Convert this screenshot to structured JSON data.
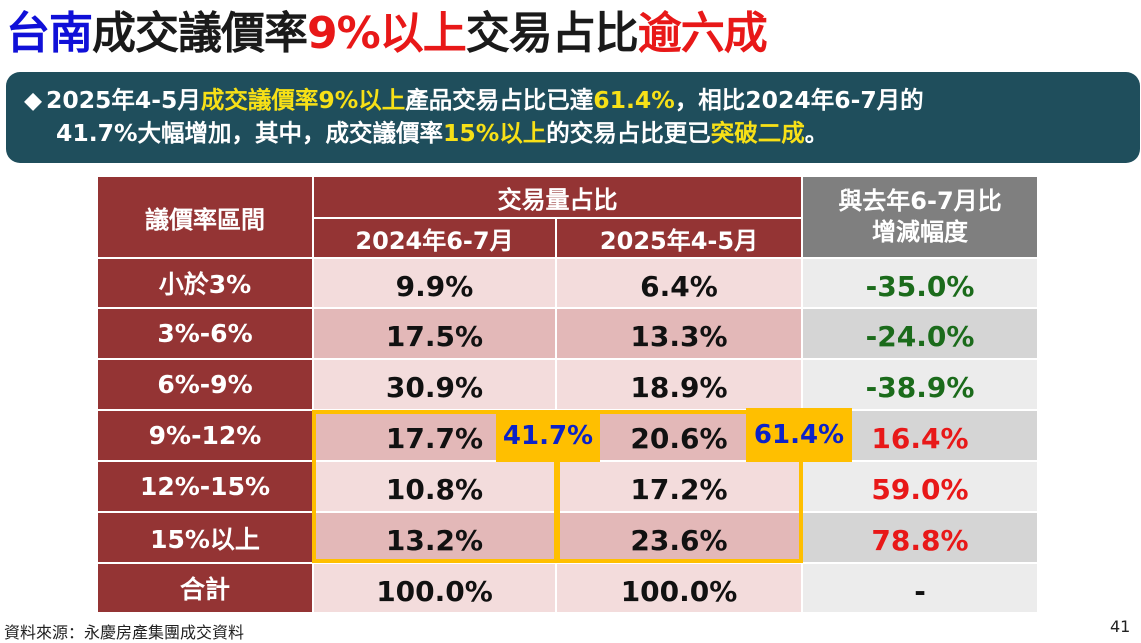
{
  "title": {
    "part1": "台南",
    "part2": "成交議價率",
    "part3": "9%以上",
    "part4": "交易占比",
    "part5": "逾六成"
  },
  "summary": {
    "bullet": "◆",
    "l1_a": "2025年4-5月",
    "l1_b": "成交議價率9%以上",
    "l1_c": "產品交易占比已達",
    "l1_d": "61.4%",
    "l1_e": "，相比2024年6-7月的",
    "l2_a": "41.7%大幅增加，其中，成交議價率",
    "l2_b": "15%以上",
    "l2_c": "的交易占比更已",
    "l2_d": "突破二成",
    "l2_e": "。"
  },
  "table": {
    "header_range": "議價率區間",
    "header_share": "交易量占比",
    "header_col_2024": "2024年6-7月",
    "header_col_2025": "2025年4-5月",
    "header_change_l1": "與去年6-7月比",
    "header_change_l2": "增減幅度",
    "rows": [
      {
        "label": "小於3%",
        "v2024": "9.9%",
        "v2025": "6.4%",
        "change": "-35.0%"
      },
      {
        "label": "3%-6%",
        "v2024": "17.5%",
        "v2025": "13.3%",
        "change": "-24.0%"
      },
      {
        "label": "6%-9%",
        "v2024": "30.9%",
        "v2025": "18.9%",
        "change": "-38.9%"
      },
      {
        "label": "9%-12%",
        "v2024": "17.7%",
        "v2025": "20.6%",
        "change": "16.4%"
      },
      {
        "label": "12%-15%",
        "v2024": "10.8%",
        "v2025": "17.2%",
        "change": "59.0%"
      },
      {
        "label": "15%以上",
        "v2024": "13.2%",
        "v2025": "23.6%",
        "change": "78.8%"
      },
      {
        "label": "合計",
        "v2024": "100.0%",
        "v2025": "100.0%",
        "change": "-"
      }
    ]
  },
  "callouts": {
    "total_2024": "41.7%",
    "total_2025": "61.4%"
  },
  "colors": {
    "header_red": "#943434",
    "accent_yellow": "#ffbf00",
    "negative_green": "#1b6b1b",
    "positive_red": "#e81818"
  },
  "source": "資料來源：永慶房產集團成交資料",
  "page_number": "41"
}
